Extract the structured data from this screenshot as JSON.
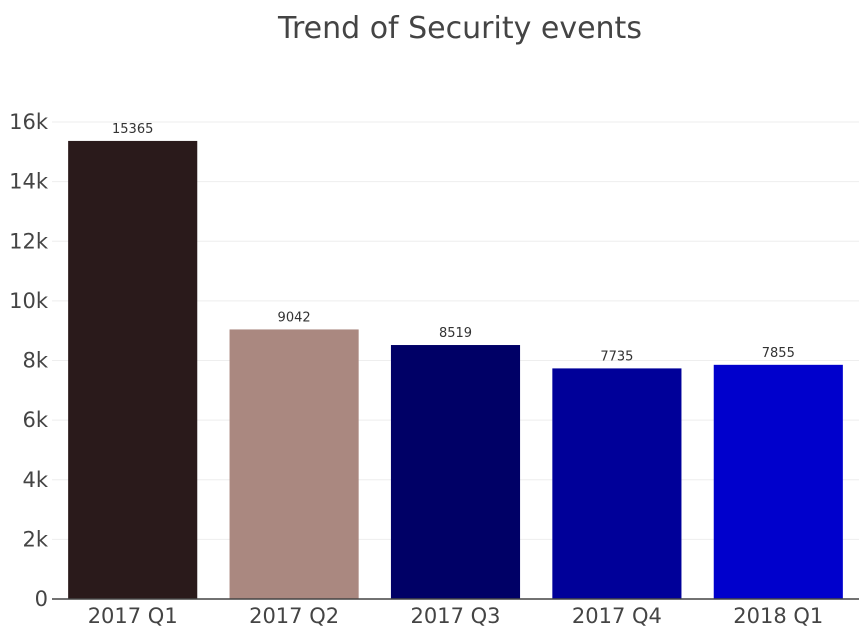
{
  "chart_data": {
    "type": "bar",
    "title": "Trend of Security events",
    "xlabel": "",
    "ylabel": "",
    "categories": [
      "2017 Q1",
      "2017 Q2",
      "2017 Q3",
      "2017 Q4",
      "2018 Q1"
    ],
    "values": [
      15365,
      9042,
      8519,
      7735,
      7855
    ],
    "data_labels": [
      "15365",
      "9042",
      "8519",
      "7735",
      "7855"
    ],
    "colors": [
      "#2a1a1b",
      "#aa8880",
      "#000066",
      "#000099",
      "#0000cc"
    ],
    "ylim": [
      0,
      16000
    ],
    "yticks": [
      0,
      2000,
      4000,
      6000,
      8000,
      10000,
      12000,
      14000,
      16000
    ],
    "ytick_labels": [
      "0",
      "2k",
      "4k",
      "6k",
      "8k",
      "10k",
      "12k",
      "14k",
      "16k"
    ],
    "grid": true,
    "legend": false
  }
}
